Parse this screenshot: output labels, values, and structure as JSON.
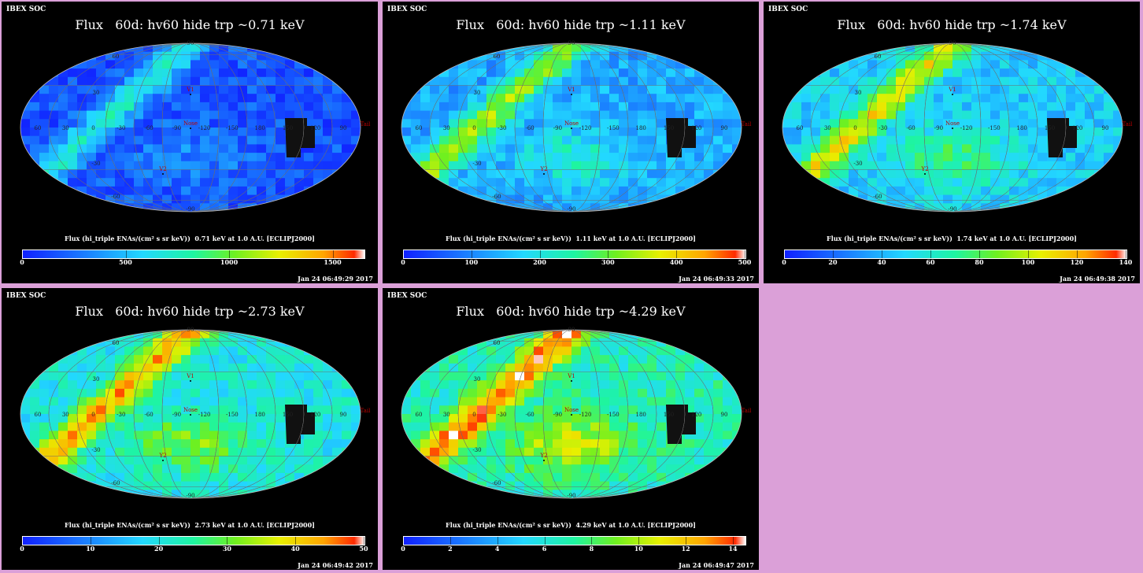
{
  "panels": [
    {
      "corner_label": "IBEX SOC",
      "title": "Flux   60d: hv60 hide trp ~0.71 keV",
      "colorbar_title": "Flux (hi_triple ENAs/(cm² s sr keV))  0.71 keV at 1.0 A.U. [ECLIPJ2000]",
      "ticks": [
        "0",
        "500",
        "1000",
        "1500"
      ],
      "tick_values": [
        0,
        500,
        1000,
        1500
      ],
      "max": 1650,
      "timestamp": "Jan 24 06:49:29 2017",
      "level": 0.22,
      "markers": {
        "v1": "V1",
        "v2": "V2",
        "nose": "Nose",
        "tail": "Tail"
      }
    },
    {
      "corner_label": "IBEX SOC",
      "title": "Flux   60d: hv60 hide trp ~1.11 keV",
      "colorbar_title": "Flux (hi_triple ENAs/(cm² s sr keV))  1.11 keV at 1.0 A.U. [ECLIPJ2000]",
      "ticks": [
        "0",
        "100",
        "200",
        "300",
        "400",
        "500"
      ],
      "tick_values": [
        0,
        100,
        200,
        300,
        400,
        500
      ],
      "max": 500,
      "timestamp": "Jan 24 06:49:33 2017",
      "level": 0.38,
      "markers": {
        "v1": "V1",
        "v2": "Y2",
        "nose": "Nose",
        "tail": "Tail"
      }
    },
    {
      "corner_label": "IBEX SOC",
      "title": "Flux   60d: hv60 hide trp ~1.74 keV",
      "colorbar_title": "Flux (hi_triple ENAs/(cm² s sr keV))  1.74 keV at 1.0 A.U. [ECLIPJ2000]",
      "ticks": [
        "0",
        "20",
        "40",
        "60",
        "80",
        "100",
        "120",
        "140"
      ],
      "tick_values": [
        0,
        20,
        40,
        60,
        80,
        100,
        120,
        140
      ],
      "max": 140,
      "timestamp": "Jan 24 06:49:38 2017",
      "level": 0.45,
      "markers": {
        "v1": "V1",
        "v2": "Y2",
        "nose": "Nose",
        "tail": "Tail"
      }
    },
    {
      "corner_label": "IBEX SOC",
      "title": "Flux   60d: hv60 hide trp ~2.73 keV",
      "colorbar_title": "Flux (hi_triple ENAs/(cm² s sr keV))  2.73 keV at 1.0 A.U. [ECLIPJ2000]",
      "ticks": [
        "0",
        "10",
        "20",
        "30",
        "40",
        "50"
      ],
      "tick_values": [
        0,
        10,
        20,
        30,
        40,
        50
      ],
      "max": 50,
      "timestamp": "Jan 24 06:49:42 2017",
      "level": 0.52,
      "markers": {
        "v1": "V1",
        "v2": "Y2",
        "nose": "Nose",
        "tail": "Tail"
      }
    },
    {
      "corner_label": "IBEX SOC",
      "title": "Flux   60d: hv60 hide trp ~4.29 keV",
      "colorbar_title": "Flux (hi_triple ENAs/(cm² s sr keV))  4.29 keV at 1.0 A.U. [ECLIPJ2000]",
      "ticks": [
        "0",
        "2",
        "4",
        "6",
        "8",
        "10",
        "12",
        "14"
      ],
      "tick_values": [
        0,
        2,
        4,
        6,
        8,
        10,
        12,
        14
      ],
      "max": 14.5,
      "timestamp": "Jan 24 06:49:47 2017",
      "level": 0.58,
      "markers": {
        "v1": "V1",
        "v2": "Y2",
        "nose": "Nose",
        "tail": "Tail"
      }
    }
  ],
  "grid_labels": {
    "longitudes": [
      "60",
      "30",
      "0",
      "-30",
      "-60",
      "-90",
      "-120",
      "-150",
      "180",
      "150",
      "120",
      "90"
    ],
    "latitudes": [
      "60",
      "30",
      "-30",
      "-60",
      "90",
      "-90"
    ]
  }
}
